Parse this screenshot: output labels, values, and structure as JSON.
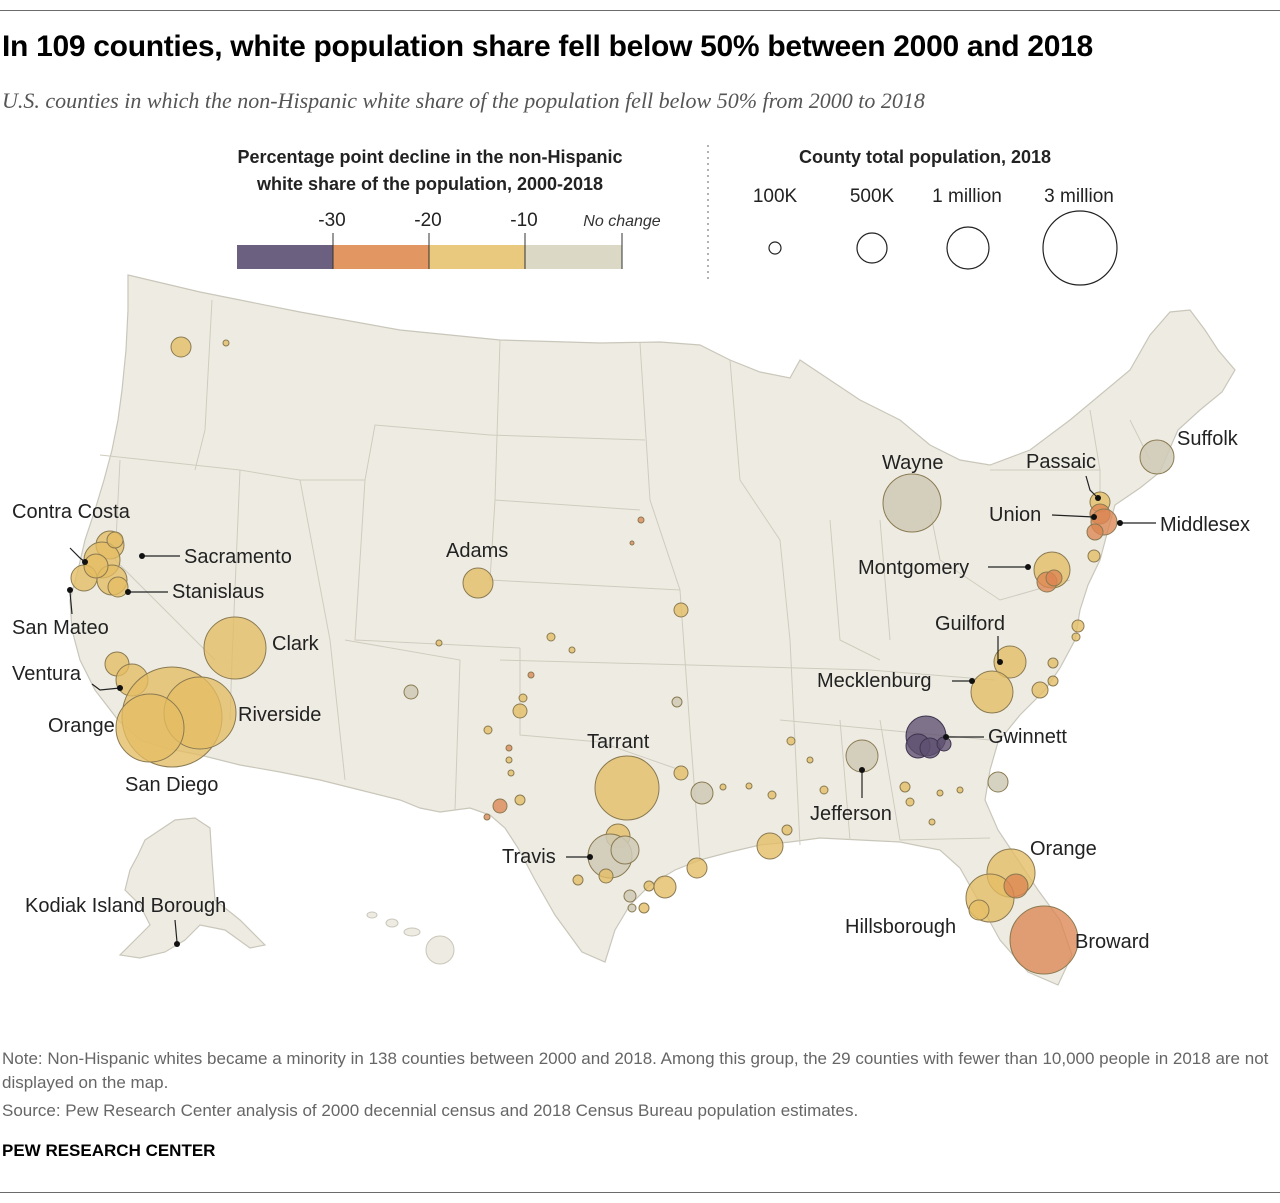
{
  "header": {
    "title": "In 109 counties, white population share fell below 50% between 2000 and 2018",
    "subtitle": "U.S. counties in which the non-Hispanic white share of the population fell below 50% from 2000 to 2018"
  },
  "legend_color": {
    "title_line1": "Percentage point decline in the non-Hispanic",
    "title_line2": "white share of the population, 2000-2018",
    "ticks": [
      "-30",
      "-20",
      "-10",
      "No change"
    ],
    "bins": [
      {
        "range": "-40 to -30",
        "color": "#6b6080"
      },
      {
        "range": "-30 to -20",
        "color": "#e29763"
      },
      {
        "range": "-20 to -10",
        "color": "#e8c97e"
      },
      {
        "range": "-10 to 0",
        "color": "#dcd8c6"
      }
    ]
  },
  "legend_size": {
    "title": "County total population, 2018",
    "items": [
      {
        "label": "100K",
        "value": 100000
      },
      {
        "label": "500K",
        "value": 500000
      },
      {
        "label": "1 million",
        "value": 1000000
      },
      {
        "label": "3 million",
        "value": 3000000
      }
    ]
  },
  "colors": {
    "dark": "#5d5070",
    "orange": "#dd8552",
    "gold": "#e4bd63",
    "gray": "#cfcab6",
    "land": "#eeece2",
    "border": "#c9c6ba"
  },
  "labels": {
    "contra_costa": "Contra Costa",
    "sacramento": "Sacramento",
    "stanislaus": "Stanislaus",
    "san_mateo": "San Mateo",
    "ventura": "Ventura",
    "orange_ca": "Orange",
    "riverside": "Riverside",
    "san_diego": "San Diego",
    "clark": "Clark",
    "adams": "Adams",
    "tarrant": "Tarrant",
    "travis": "Travis",
    "kodiak": "Kodiak Island Borough",
    "wayne": "Wayne",
    "passaic": "Passaic",
    "suffolk": "Suffolk",
    "union": "Union",
    "middlesex": "Middlesex",
    "montgomery": "Montgomery",
    "guilford": "Guilford",
    "mecklenburg": "Mecklenburg",
    "gwinnett": "Gwinnett",
    "jefferson": "Jefferson",
    "orange_fl": "Orange",
    "hillsborough": "Hillsborough",
    "broward": "Broward"
  },
  "footer": {
    "note": "Note: Non-Hispanic whites became a minority in 138 counties between 2000 and 2018. Among this group, the 29 counties with fewer than 10,000 people in 2018 are not displayed on the map.",
    "source": "Source: Pew Research Center analysis of 2000 decennial census and 2018 Census Bureau population estimates.",
    "credit": "PEW RESEARCH CENTER"
  }
}
